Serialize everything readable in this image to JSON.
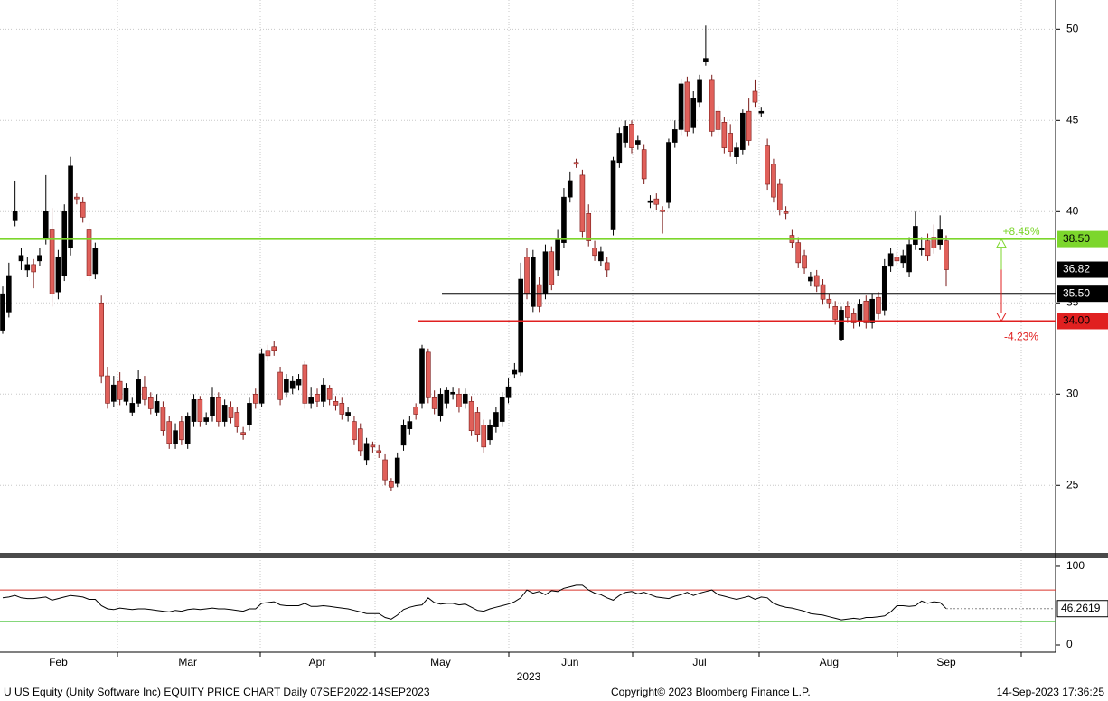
{
  "chart_data": {
    "type": "candlestick",
    "footer_left": "U US Equity (Unity Software Inc) EQUITY PRICE CHART  Daily 07SEP2022-14SEP2023",
    "footer_center": "Copyright© 2023 Bloomberg Finance L.P.",
    "footer_right": "14-Sep-2023 17:36:25",
    "year_label": "2023",
    "categories": [
      null,
      null,
      null,
      null,
      null,
      null,
      null,
      null,
      null,
      "Feb",
      null,
      null,
      null,
      null,
      null,
      null,
      null,
      null,
      null,
      null,
      null,
      null,
      null,
      null,
      null,
      null,
      null,
      null,
      null,
      null,
      "Mar",
      null,
      null,
      null,
      null,
      null,
      null,
      null,
      null,
      null,
      null,
      null,
      null,
      null,
      null,
      null,
      null,
      null,
      null,
      null,
      null,
      "Apr",
      null,
      null,
      null,
      null,
      null,
      null,
      null,
      null,
      null,
      null,
      null,
      null,
      null,
      null,
      null,
      null,
      null,
      null,
      null,
      "May",
      null,
      null,
      null,
      null,
      null,
      null,
      null,
      null,
      null,
      null,
      null,
      null,
      null,
      null,
      null,
      null,
      null,
      null,
      null,
      null,
      "Jun",
      null,
      null,
      null,
      null,
      null,
      null,
      null,
      null,
      null,
      null,
      null,
      null,
      null,
      null,
      null,
      null,
      null,
      null,
      null,
      null,
      "Jul",
      null,
      null,
      null,
      null,
      null,
      null,
      null,
      null,
      null,
      null,
      null,
      null,
      null,
      null,
      null,
      null,
      null,
      null,
      null,
      null,
      "Aug",
      null,
      null,
      null,
      null,
      null,
      null,
      null,
      null,
      null,
      null,
      null,
      null,
      null,
      null,
      null,
      null,
      null,
      null,
      "Sep"
    ],
    "open": [
      33.5,
      34.5,
      39.5,
      37.3,
      36.8,
      37.1,
      37.3,
      38.5,
      39.0,
      35.6,
      36.5,
      38.0,
      40.8,
      40.5,
      39.0,
      36.6,
      35.0,
      31.0,
      29.6,
      30.7,
      29.6,
      29.0,
      29.5,
      30.4,
      29.8,
      29.0,
      29.3,
      28.5,
      27.3,
      28.5,
      27.3,
      28.5,
      29.7,
      28.5,
      28.8,
      29.8,
      28.5,
      29.3,
      29.0,
      27.9,
      28.3,
      30.0,
      29.5,
      32.4,
      32.6,
      31.2,
      30.1,
      30.3,
      30.5,
      31.6,
      29.5,
      30.0,
      29.6,
      30.3,
      29.6,
      29.5,
      28.8,
      28.5,
      28.1,
      26.4,
      27.2,
      26.9,
      26.4,
      25.2,
      25.1,
      27.2,
      28.1,
      29.3,
      29.5,
      32.3,
      29.8,
      28.8,
      29.5,
      30.0,
      30.0,
      29.5,
      29.6,
      29.0,
      28.3,
      27.5,
      28.2,
      28.5,
      29.8,
      31.1,
      31.2,
      37.5,
      34.8,
      36.0,
      35.5,
      37.8,
      36.8,
      38.3,
      40.8,
      42.7,
      42.0,
      39.9,
      38.0,
      37.3,
      37.2,
      39.0,
      42.7,
      43.8,
      44.8,
      43.7,
      43.4,
      40.5,
      40.7,
      40.1,
      40.5,
      43.8,
      44.5,
      47.1,
      44.6,
      46.0,
      48.2,
      47.2,
      45.5,
      44.9,
      44.3,
      43.0,
      43.4,
      45.5,
      46.6,
      45.4,
      43.6,
      42.6,
      41.5,
      40.0,
      38.7,
      38.3,
      37.6,
      36.2,
      36.5,
      36.0,
      35.2,
      34.8,
      33.0,
      34.8,
      34.4,
      34.0,
      35.1,
      33.9,
      35.3,
      34.6,
      37.0,
      37.5,
      37.2,
      36.7,
      38.2,
      37.9,
      38.4,
      38.6,
      38.2,
      38.4
    ],
    "high": [
      35.9,
      37.2,
      41.7,
      38.0,
      37.5,
      37.4,
      38.0,
      42.0,
      40.2,
      37.9,
      40.4,
      43.0,
      41.0,
      40.8,
      39.4,
      38.3,
      35.4,
      31.5,
      31.0,
      31.2,
      30.6,
      29.8,
      31.3,
      31.0,
      30.1,
      30.0,
      29.6,
      28.8,
      28.4,
      28.8,
      29.0,
      30.0,
      29.9,
      29.0,
      30.4,
      30.1,
      29.7,
      29.6,
      29.3,
      28.2,
      29.8,
      30.3,
      32.5,
      32.7,
      32.9,
      31.5,
      31.1,
      31.0,
      31.1,
      31.8,
      30.4,
      30.3,
      30.9,
      30.5,
      29.9,
      29.8,
      29.3,
      28.8,
      28.4,
      27.6,
      27.4,
      27.2,
      26.7,
      25.4,
      26.8,
      28.6,
      28.8,
      29.5,
      32.7,
      32.5,
      30.2,
      30.3,
      30.4,
      30.4,
      30.3,
      30.3,
      29.9,
      29.3,
      28.6,
      28.6,
      29.3,
      30.1,
      30.9,
      31.7,
      37.2,
      38.0,
      37.9,
      36.4,
      38.2,
      38.1,
      39.0,
      41.3,
      42.2,
      42.9,
      42.3,
      40.4,
      38.4,
      38.1,
      37.5,
      43.0,
      44.6,
      45.0,
      45.0,
      44.2,
      43.7,
      40.9,
      41.0,
      40.3,
      44.0,
      45.0,
      47.3,
      47.4,
      46.6,
      47.5,
      50.2,
      47.5,
      45.8,
      45.2,
      44.8,
      43.8,
      45.6,
      46.2,
      47.2,
      45.7,
      44.0,
      42.9,
      41.8,
      40.3,
      39.0,
      38.6,
      37.9,
      36.7,
      36.8,
      36.3,
      35.5,
      35.1,
      34.8,
      35.1,
      34.7,
      35.2,
      35.4,
      35.5,
      35.6,
      37.4,
      38.0,
      37.8,
      37.9,
      38.6,
      40.0,
      38.6,
      38.8,
      39.3,
      39.8,
      38.7
    ],
    "low": [
      33.3,
      34.2,
      39.2,
      36.8,
      36.4,
      35.8,
      37.0,
      38.2,
      34.8,
      35.2,
      36.2,
      37.6,
      40.4,
      39.4,
      36.2,
      36.3,
      30.6,
      29.2,
      29.3,
      29.4,
      29.4,
      28.8,
      29.3,
      29.4,
      28.9,
      28.8,
      27.7,
      27.0,
      27.0,
      27.2,
      27.0,
      28.2,
      28.2,
      28.3,
      28.5,
      28.2,
      28.2,
      28.4,
      27.9,
      27.5,
      28.0,
      29.2,
      29.3,
      31.8,
      32.1,
      29.4,
      29.8,
      30.0,
      30.2,
      29.2,
      29.2,
      29.3,
      29.3,
      29.4,
      29.1,
      28.6,
      28.5,
      27.2,
      26.6,
      26.1,
      26.8,
      26.5,
      25.0,
      24.7,
      24.9,
      26.9,
      27.8,
      28.6,
      29.2,
      29.5,
      28.9,
      28.5,
      29.2,
      29.7,
      29.0,
      29.2,
      27.7,
      27.4,
      26.8,
      27.2,
      27.9,
      28.2,
      29.5,
      30.9,
      31.0,
      35.2,
      34.5,
      34.5,
      35.2,
      35.7,
      36.5,
      38.0,
      40.5,
      42.4,
      38.6,
      38.1,
      37.3,
      37.0,
      36.4,
      38.7,
      42.4,
      43.5,
      43.2,
      43.4,
      41.5,
      40.2,
      40.1,
      38.8,
      40.2,
      43.5,
      44.2,
      44.1,
      44.3,
      45.7,
      48.0,
      44.1,
      44.2,
      43.2,
      43.0,
      42.6,
      43.1,
      43.6,
      45.7,
      45.2,
      41.2,
      40.5,
      39.8,
      39.6,
      38.0,
      36.9,
      36.6,
      35.9,
      35.6,
      34.9,
      34.7,
      33.8,
      32.9,
      33.9,
      33.6,
      33.7,
      33.6,
      33.6,
      34.1,
      34.3,
      36.7,
      37.0,
      36.9,
      36.4,
      37.9,
      37.6,
      37.3,
      37.7,
      37.9,
      35.9
    ],
    "close": [
      35.5,
      36.5,
      40.0,
      37.6,
      37.1,
      36.7,
      37.6,
      40.0,
      35.5,
      37.5,
      40.0,
      42.5,
      40.7,
      39.7,
      36.5,
      38.0,
      31.0,
      29.5,
      30.5,
      29.7,
      30.3,
      29.5,
      30.8,
      29.7,
      29.2,
      29.6,
      28.0,
      27.3,
      28.0,
      27.5,
      28.8,
      29.7,
      28.5,
      28.7,
      29.8,
      28.5,
      29.4,
      28.7,
      28.2,
      27.8,
      29.5,
      29.5,
      32.2,
      32.1,
      32.4,
      29.7,
      30.8,
      30.7,
      30.8,
      29.5,
      29.8,
      29.6,
      30.5,
      29.7,
      29.4,
      28.9,
      29.0,
      27.5,
      26.9,
      27.3,
      27.1,
      26.8,
      25.3,
      24.9,
      26.5,
      28.3,
      28.5,
      28.9,
      32.5,
      29.8,
      29.2,
      30.0,
      30.2,
      30.1,
      29.3,
      30.0,
      28.0,
      27.8,
      27.1,
      28.3,
      29.0,
      29.8,
      30.4,
      31.3,
      36.3,
      35.5,
      37.5,
      34.8,
      37.8,
      36.0,
      38.5,
      40.8,
      41.7,
      42.6,
      38.9,
      38.4,
      37.6,
      37.8,
      36.8,
      42.8,
      44.3,
      44.7,
      43.5,
      43.9,
      41.8,
      40.6,
      40.4,
      40.0,
      43.8,
      44.5,
      47.0,
      44.4,
      46.2,
      47.2,
      48.4,
      44.4,
      44.5,
      43.5,
      43.3,
      43.5,
      45.4,
      43.9,
      46.0,
      45.5,
      41.5,
      40.8,
      40.1,
      39.9,
      38.3,
      37.2,
      36.9,
      36.4,
      35.9,
      35.2,
      35.0,
      34.1,
      34.6,
      34.2,
      33.9,
      34.9,
      33.9,
      35.2,
      34.4,
      37.0,
      37.7,
      37.3,
      37.6,
      38.2,
      39.2,
      38.0,
      37.6,
      38.0,
      39.0,
      36.82
    ],
    "up_color": "#000000",
    "down_color": "#e0605a",
    "ylim": [
      21.3,
      51.6
    ],
    "yticks": [
      25,
      30,
      35,
      40,
      45,
      50
    ],
    "grid": true,
    "hlines": [
      {
        "value": 38.5,
        "label": "38.50",
        "color": "#7cd62c"
      },
      {
        "value": 35.5,
        "label": "35.50",
        "color": "#000000"
      },
      {
        "value": 34,
        "label": "34.00",
        "color": "#e02020"
      }
    ],
    "annotations": [
      {
        "text": "+8.45%",
        "color": "#7cd62c"
      },
      {
        "text": "-4.23%",
        "color": "#e02020"
      }
    ],
    "rsi": {
      "values": [
        60,
        61,
        63,
        60,
        59,
        59,
        60,
        61,
        57,
        59,
        61,
        63,
        62,
        61,
        58,
        58,
        50,
        46,
        45,
        47,
        46,
        45,
        46,
        46,
        45,
        44,
        43,
        42,
        44,
        43,
        45,
        46,
        45,
        46,
        47,
        46,
        46,
        45,
        44,
        43,
        46,
        46,
        53,
        54,
        55,
        51,
        50,
        50,
        50,
        53,
        49,
        49,
        50,
        49,
        48,
        47,
        46,
        44,
        42,
        40,
        40,
        40,
        35,
        33,
        38,
        45,
        48,
        50,
        51,
        60,
        54,
        52,
        53,
        53,
        51,
        52,
        48,
        44,
        43,
        46,
        48,
        50,
        52,
        55,
        60,
        70,
        66,
        68,
        64,
        69,
        68,
        72,
        74,
        76,
        76,
        70,
        66,
        64,
        60,
        57,
        63,
        67,
        68,
        65,
        67,
        64,
        61,
        60,
        59,
        62,
        64,
        67,
        63,
        66,
        68,
        70,
        64,
        62,
        60,
        58,
        60,
        62,
        58,
        61,
        60,
        53,
        50,
        48,
        47,
        45,
        43,
        40,
        39,
        38,
        36,
        34,
        32,
        33,
        34,
        33,
        35,
        35,
        36,
        37,
        42,
        50,
        50,
        49,
        50,
        56,
        53,
        55,
        54,
        46.2619
      ],
      "color": "#000000",
      "ylim": [
        -9.2,
        110.3
      ],
      "yticks": [
        0,
        100
      ],
      "levels": [
        {
          "value": 70,
          "color": "#d9342b"
        },
        {
          "value": 30,
          "color": "#3cbf2c"
        }
      ]
    }
  }
}
